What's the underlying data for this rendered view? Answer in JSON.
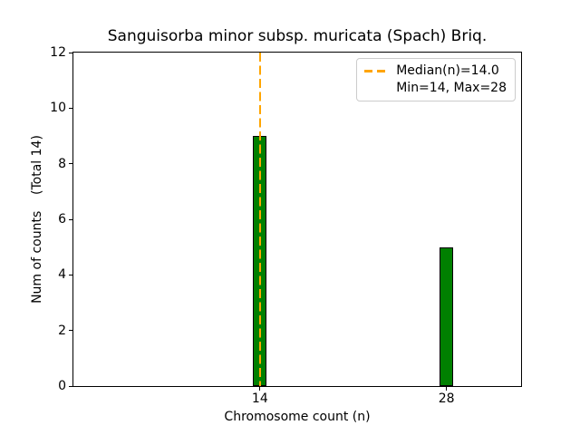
{
  "chart_data": {
    "type": "bar",
    "title": "Sanguisorba minor subsp. muricata (Spach) Briq.",
    "xlabel": "Chromosome count (n)",
    "ylabel": "Num of counts    (Total 14)",
    "categories": [
      14,
      28
    ],
    "values": [
      9,
      5
    ],
    "total_counts": 14,
    "bar_width": 1,
    "xlim": [
      0,
      33.6
    ],
    "ylim": [
      0,
      12
    ],
    "xticks": [
      "14",
      "28"
    ],
    "xtick_positions": [
      14,
      28
    ],
    "yticks": [
      "0",
      "2",
      "4",
      "6",
      "8",
      "10",
      "12"
    ],
    "ytick_positions": [
      0,
      2,
      4,
      6,
      8,
      10,
      12
    ],
    "grid": false,
    "median": 14.0,
    "min": 14,
    "max": 28,
    "colors": {
      "bar_fill": "#008000",
      "bar_edge": "#000000",
      "median_line": "#FFA500",
      "axis": "#000000",
      "legend_border": "#cccccc",
      "background": "#ffffff"
    },
    "legend": {
      "position": "upper right",
      "entries": [
        {
          "handle": "orange-dashed-line",
          "label": "Median(n)=14.0"
        },
        {
          "handle": "none",
          "label": "Min=14, Max=28"
        }
      ]
    }
  }
}
